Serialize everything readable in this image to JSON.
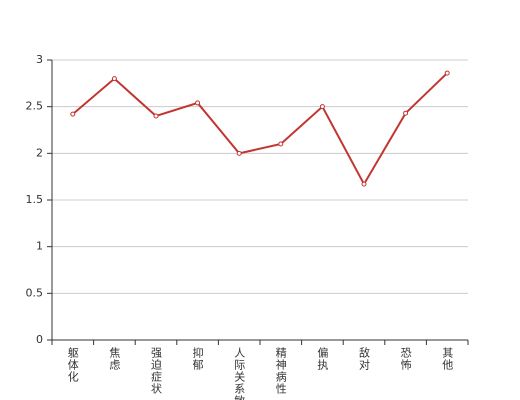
{
  "chart_data": {
    "type": "line",
    "categories": [
      "躯体化",
      "焦虑",
      "强迫症状",
      "抑郁",
      "人际关系敏感",
      "精神病性",
      "偏执",
      "敌对",
      "恐怖",
      "其他"
    ],
    "series": [
      {
        "color": "#c23531",
        "values": [
          2.42,
          2.8,
          2.4,
          2.54,
          2.0,
          2.1,
          2.5,
          1.67,
          2.43,
          2.86
        ]
      }
    ],
    "ylim": [
      0,
      3
    ],
    "yticks": [
      0,
      0.5,
      1,
      1.5,
      2,
      2.5,
      3
    ],
    "grid": true
  }
}
